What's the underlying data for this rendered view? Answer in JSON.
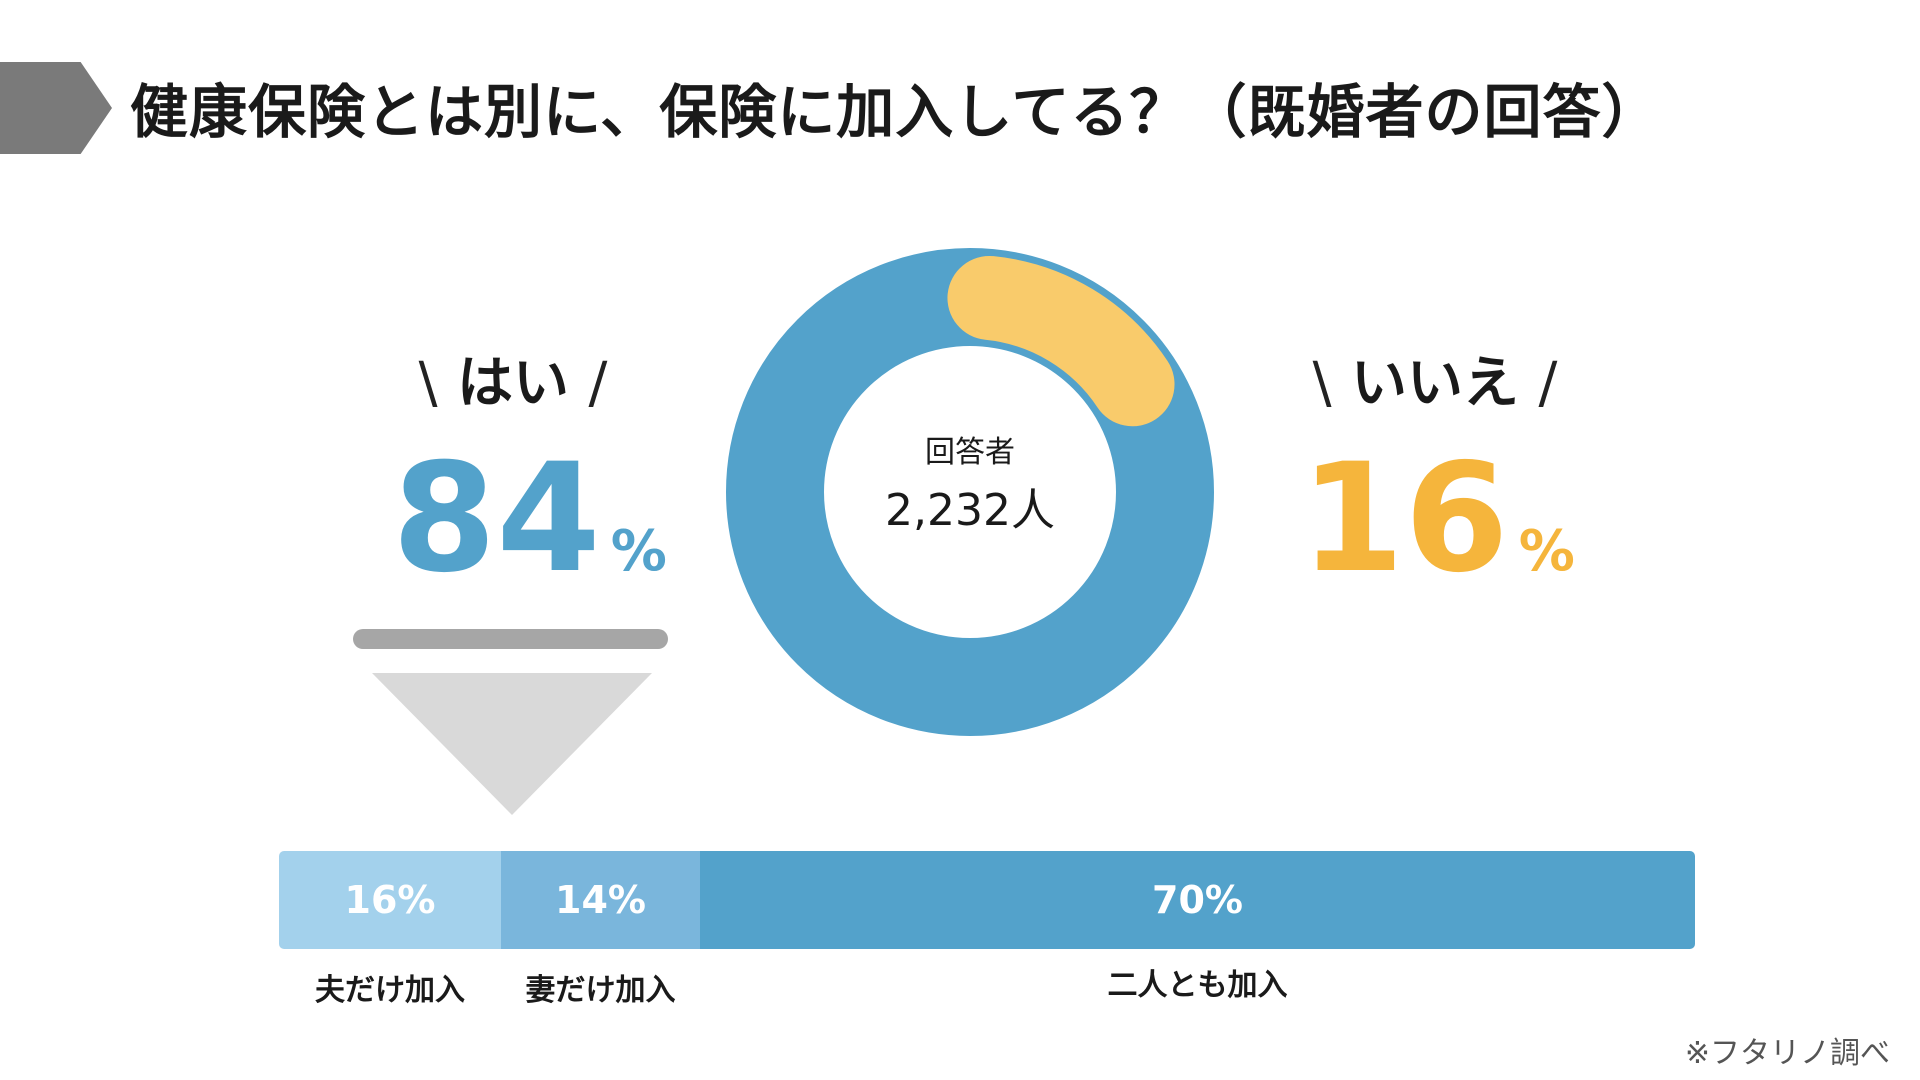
{
  "title": "健康保険とは別に、保険に加入してる？（既婚者の回答）",
  "colors": {
    "yes": "#53a2cb",
    "no": "#f5b53c",
    "no_slice": "#f9cb6b",
    "seg_husband": "#a3d1ec",
    "seg_wife": "#7ab6dc",
    "seg_both": "#53a2cb"
  },
  "yes": {
    "label": "はい",
    "value": "84",
    "unit": "%"
  },
  "no": {
    "label": "いいえ",
    "value": "16",
    "unit": "%"
  },
  "slash_left": "\\",
  "slash_right": "/",
  "donut": {
    "center_title": "回答者",
    "center_count": "2,232人"
  },
  "chart_data": [
    {
      "type": "pie",
      "subtype": "donut",
      "categories": [
        "はい",
        "いいえ"
      ],
      "values": [
        84,
        16
      ],
      "unit": "%",
      "center_text": [
        "回答者",
        "2,232人"
      ]
    },
    {
      "type": "bar",
      "subtype": "stacked-horizontal-100",
      "categories": [
        "夫だけ加入",
        "妻だけ加入",
        "二人とも加入"
      ],
      "values": [
        16,
        14,
        70
      ],
      "value_labels": [
        "16%",
        "14%",
        "70%"
      ],
      "unit": "%"
    }
  ],
  "note": "※フタリノ調べ"
}
